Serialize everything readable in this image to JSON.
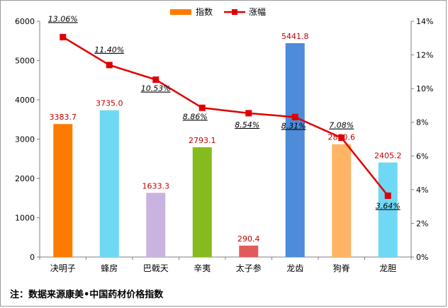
{
  "note": "注：数据来源康美•中国药材价格指数",
  "chart_data": {
    "type": "bar+line",
    "categories": [
      "决明子",
      "蜂房",
      "巴戟天",
      "辛夷",
      "太子参",
      "龙齿",
      "狗脊",
      "龙胆"
    ],
    "series": [
      {
        "name": "指数",
        "type": "bar",
        "axis": "left",
        "values": [
          3383.7,
          3735.0,
          1633.3,
          2793.1,
          290.4,
          5441.8,
          2870.6,
          2405.2
        ],
        "labels": [
          "3383.7",
          "3735.0",
          "1633.3",
          "2793.1",
          "290.4",
          "5441.8",
          "2870.6",
          "2405.2"
        ],
        "colors": [
          "#ff7b00",
          "#6fd8f5",
          "#c9b3e0",
          "#86bb1d",
          "#e25b5b",
          "#4e8bd9",
          "#ffb565",
          "#6fd8f5"
        ]
      },
      {
        "name": "涨幅",
        "type": "line",
        "axis": "right",
        "values": [
          13.06,
          11.4,
          10.53,
          8.86,
          8.54,
          8.31,
          7.08,
          3.64
        ],
        "labels": [
          "13.06%",
          "11.40%",
          "10.53%",
          "8.86%",
          "8.54%",
          "8.31%",
          "7.08%",
          "3.64%"
        ],
        "color": "#e00000"
      }
    ],
    "y_left": {
      "min": 0,
      "max": 6000,
      "ticks": [
        "0",
        "1000",
        "2000",
        "3000",
        "4000",
        "5000",
        "6000"
      ]
    },
    "y_right": {
      "min": 0,
      "max": 14,
      "ticks": [
        "0%",
        "2%",
        "4%",
        "6%",
        "8%",
        "10%",
        "12%",
        "14%"
      ]
    },
    "legend": [
      "指数",
      "涨幅"
    ],
    "legend_position": "top-center",
    "grid": false
  }
}
